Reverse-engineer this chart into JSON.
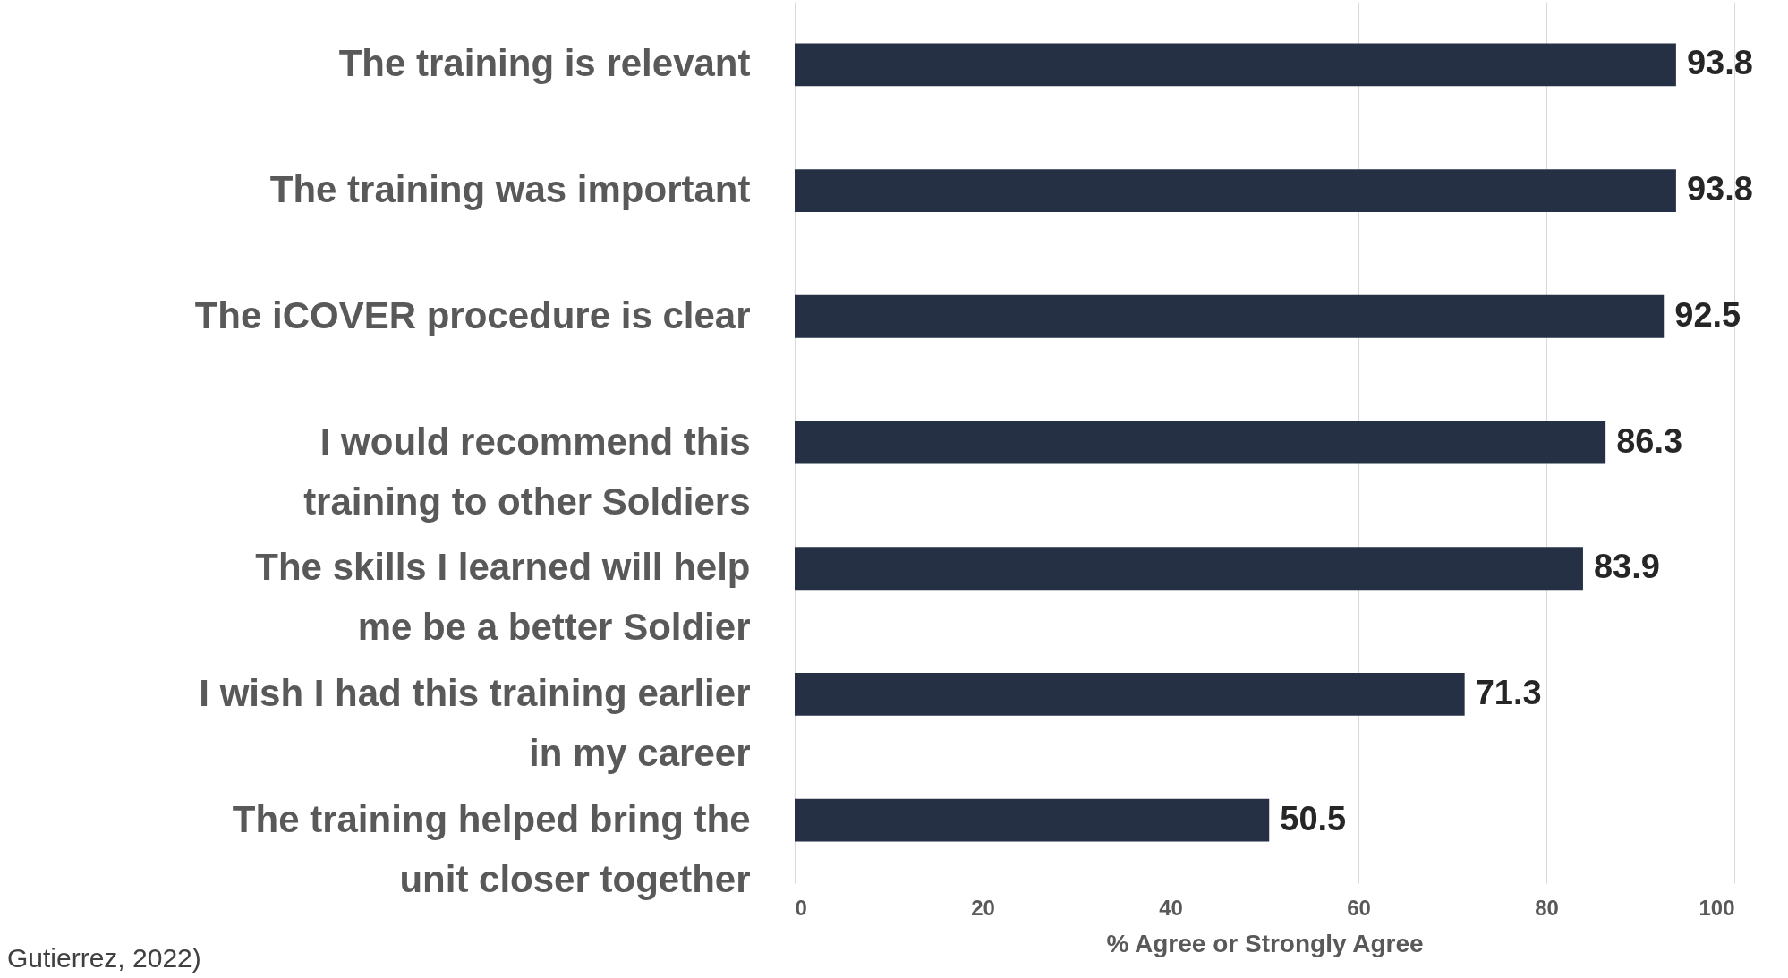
{
  "chart_data": {
    "type": "bar",
    "orientation": "horizontal",
    "categories": [
      "The training is relevant",
      "The training was important",
      "The iCOVER procedure is clear",
      "I would recommend this\ntraining to other Soldiers",
      "The skills I learned will help\nme be a better Soldier",
      "I wish I had this training earlier\nin my career",
      "The training helped bring the\nunit closer together"
    ],
    "values": [
      93.8,
      93.8,
      92.5,
      86.3,
      83.9,
      71.3,
      50.5
    ],
    "color": "#253044",
    "xlim": [
      0,
      100
    ],
    "xticks": [
      0,
      20,
      40,
      60,
      80,
      100
    ],
    "xlabel": "% Agree or Strongly Agree",
    "grid": "x",
    "data_labels": true,
    "annotations": [
      "Gutierrez, 2022)"
    ]
  }
}
